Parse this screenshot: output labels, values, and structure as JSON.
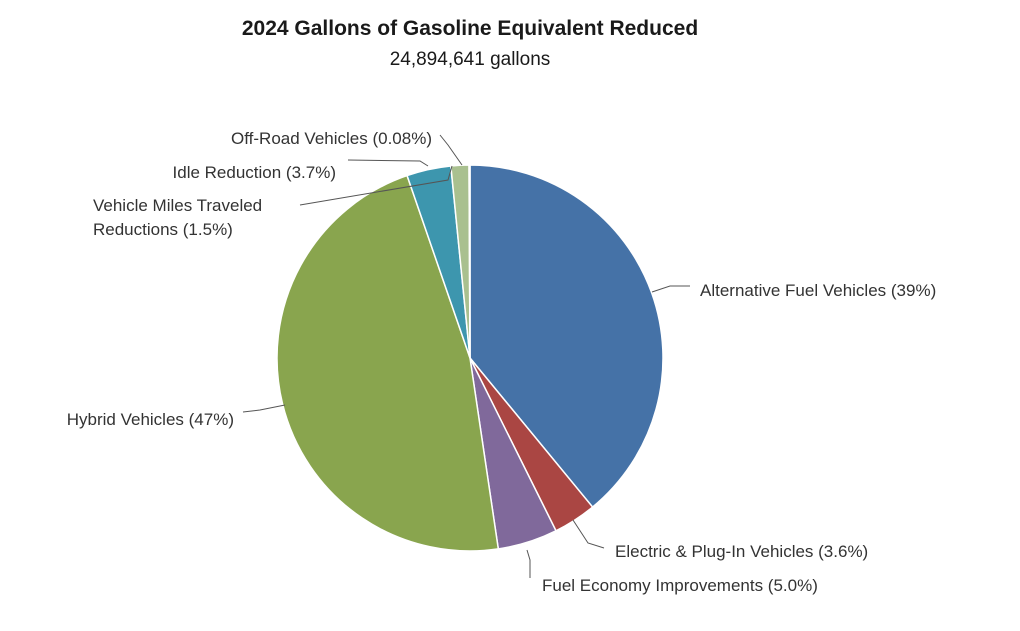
{
  "chart_data": {
    "type": "pie",
    "title": "2024 Gallons of Gasoline Equivalent Reduced",
    "subtitle": "24,894,641 gallons",
    "slices": [
      {
        "name": "Alternative Fuel Vehicles",
        "value": 39,
        "label": "Alternative Fuel Vehicles (39%)",
        "color": "#4572a7"
      },
      {
        "name": "Electric & Plug-In Vehicles",
        "value": 3.6,
        "label": "Electric & Plug-In Vehicles (3.6%)",
        "color": "#aa4643"
      },
      {
        "name": "Fuel Economy Improvements",
        "value": 5.0,
        "label": "Fuel Economy Improvements (5.0%)",
        "color": "#80699b"
      },
      {
        "name": "Hybrid Vehicles",
        "value": 47,
        "label": "Hybrid Vehicles (47%)",
        "color": "#89a54e"
      },
      {
        "name": "Idle Reduction",
        "value": 3.7,
        "label": "Idle Reduction (3.7%)",
        "color": "#3d96ae"
      },
      {
        "name": "Vehicle Miles Traveled Reductions",
        "value": 1.5,
        "label_lines": [
          "Vehicle Miles Traveled",
          "Reductions (1.5%)"
        ],
        "color": "#a9c08f"
      },
      {
        "name": "Off-Road Vehicles",
        "value": 0.08,
        "label": "Off-Road Vehicles (0.08%)",
        "color": "#db843d"
      }
    ]
  }
}
